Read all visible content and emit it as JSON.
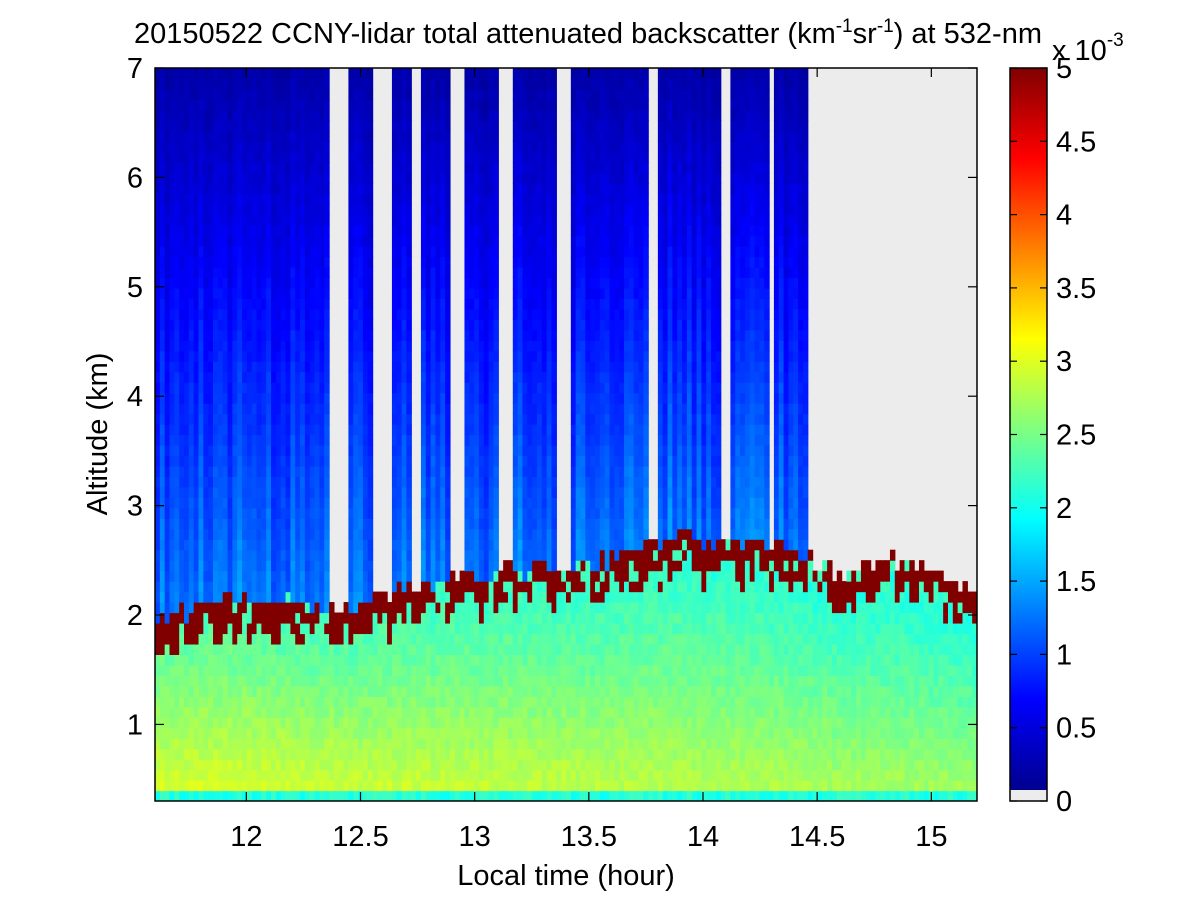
{
  "chart_data": {
    "type": "heatmap",
    "title": {
      "prefix": "20150522 CCNY-lidar total attenuated backscatter (km",
      "sup1": "-1",
      "middle": "sr",
      "sup2": "-1",
      "suffix": ") at 532-nm"
    },
    "xlabel": "Local time (hour)",
    "ylabel": "Altitude (km)",
    "xlim": [
      11.6,
      15.2
    ],
    "ylim": [
      0.3,
      7
    ],
    "xticks": [
      12,
      12.5,
      13,
      13.5,
      14,
      14.5,
      15
    ],
    "xtick_labels": [
      "12",
      "12.5",
      "13",
      "13.5",
      "14",
      "14.5",
      "15"
    ],
    "yticks": [
      1,
      2,
      3,
      4,
      5,
      6,
      7
    ],
    "ytick_labels": [
      "1",
      "2",
      "3",
      "4",
      "5",
      "6",
      "7"
    ],
    "colorbar": {
      "colormap": "jet",
      "range": [
        0,
        5
      ],
      "ticks": [
        0,
        0.5,
        1,
        1.5,
        2,
        2.5,
        3,
        3.5,
        4,
        4.5,
        5
      ],
      "tick_labels": [
        "0",
        "0.5",
        "1",
        "1.5",
        "2",
        "2.5",
        "3",
        "3.5",
        "4",
        "4.5",
        "5"
      ],
      "multiplier_base": "x 10",
      "multiplier_exp": "-3",
      "nodata_color": "#ececec"
    },
    "layers": {
      "surface_value_range": [
        2.2,
        3.0
      ],
      "cloud_value": 5,
      "free_troposphere_value_range": [
        0.2,
        1.2
      ],
      "pbl_top_km": [
        [
          11.6,
          1.95
        ],
        [
          12.0,
          2.2
        ],
        [
          12.4,
          2.05
        ],
        [
          12.8,
          2.3
        ],
        [
          13.2,
          2.4
        ],
        [
          13.5,
          2.45
        ],
        [
          13.9,
          2.7
        ],
        [
          14.3,
          2.65
        ],
        [
          14.6,
          2.4
        ],
        [
          14.9,
          2.55
        ],
        [
          15.2,
          2.2
        ]
      ],
      "no_signal_intervals_hours": [
        [
          12.37,
          12.45
        ],
        [
          12.56,
          12.63
        ],
        [
          12.72,
          12.77
        ],
        [
          12.9,
          12.95
        ],
        [
          13.1,
          13.16
        ],
        [
          13.35,
          13.43
        ],
        [
          13.75,
          13.8
        ],
        [
          14.08,
          14.12
        ],
        [
          14.28,
          14.32
        ],
        [
          14.45,
          15.2
        ]
      ]
    }
  }
}
